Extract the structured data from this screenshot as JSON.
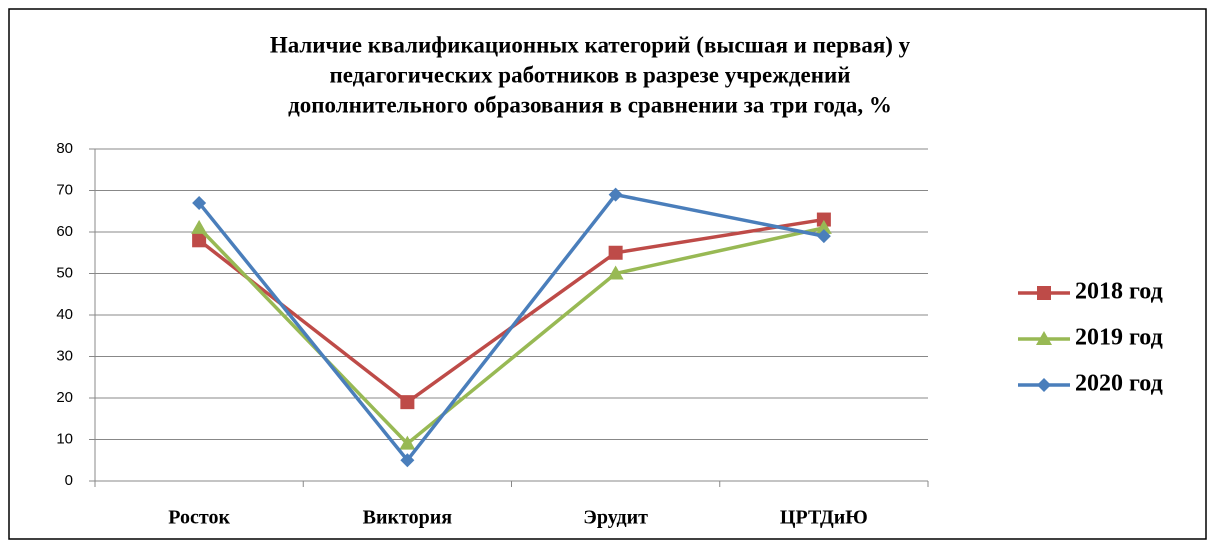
{
  "chart_data": {
    "type": "line",
    "title": [
      "Наличие квалификационных категорий (высшая и первая) у",
      "педагогических работников в разрезе учреждений",
      "дополнительного образования  в сравнении за три года, %"
    ],
    "categories": [
      "Росток",
      "Виктория",
      "Эрудит",
      "ЦРТДиЮ"
    ],
    "series": [
      {
        "name": "2018 год",
        "color": "#be4b48",
        "marker": "square",
        "values": [
          58,
          19,
          55,
          63
        ]
      },
      {
        "name": "2019 год",
        "color": "#98b954",
        "marker": "triangle",
        "values": [
          61,
          9,
          50,
          61
        ]
      },
      {
        "name": "2020 год",
        "color": "#4a7ebb",
        "marker": "diamond",
        "values": [
          67,
          5,
          69,
          59
        ]
      }
    ],
    "ylim": [
      0,
      80
    ],
    "yticks": [
      0,
      10,
      20,
      30,
      40,
      50,
      60,
      70,
      80
    ],
    "grid": true,
    "legend": "right"
  }
}
